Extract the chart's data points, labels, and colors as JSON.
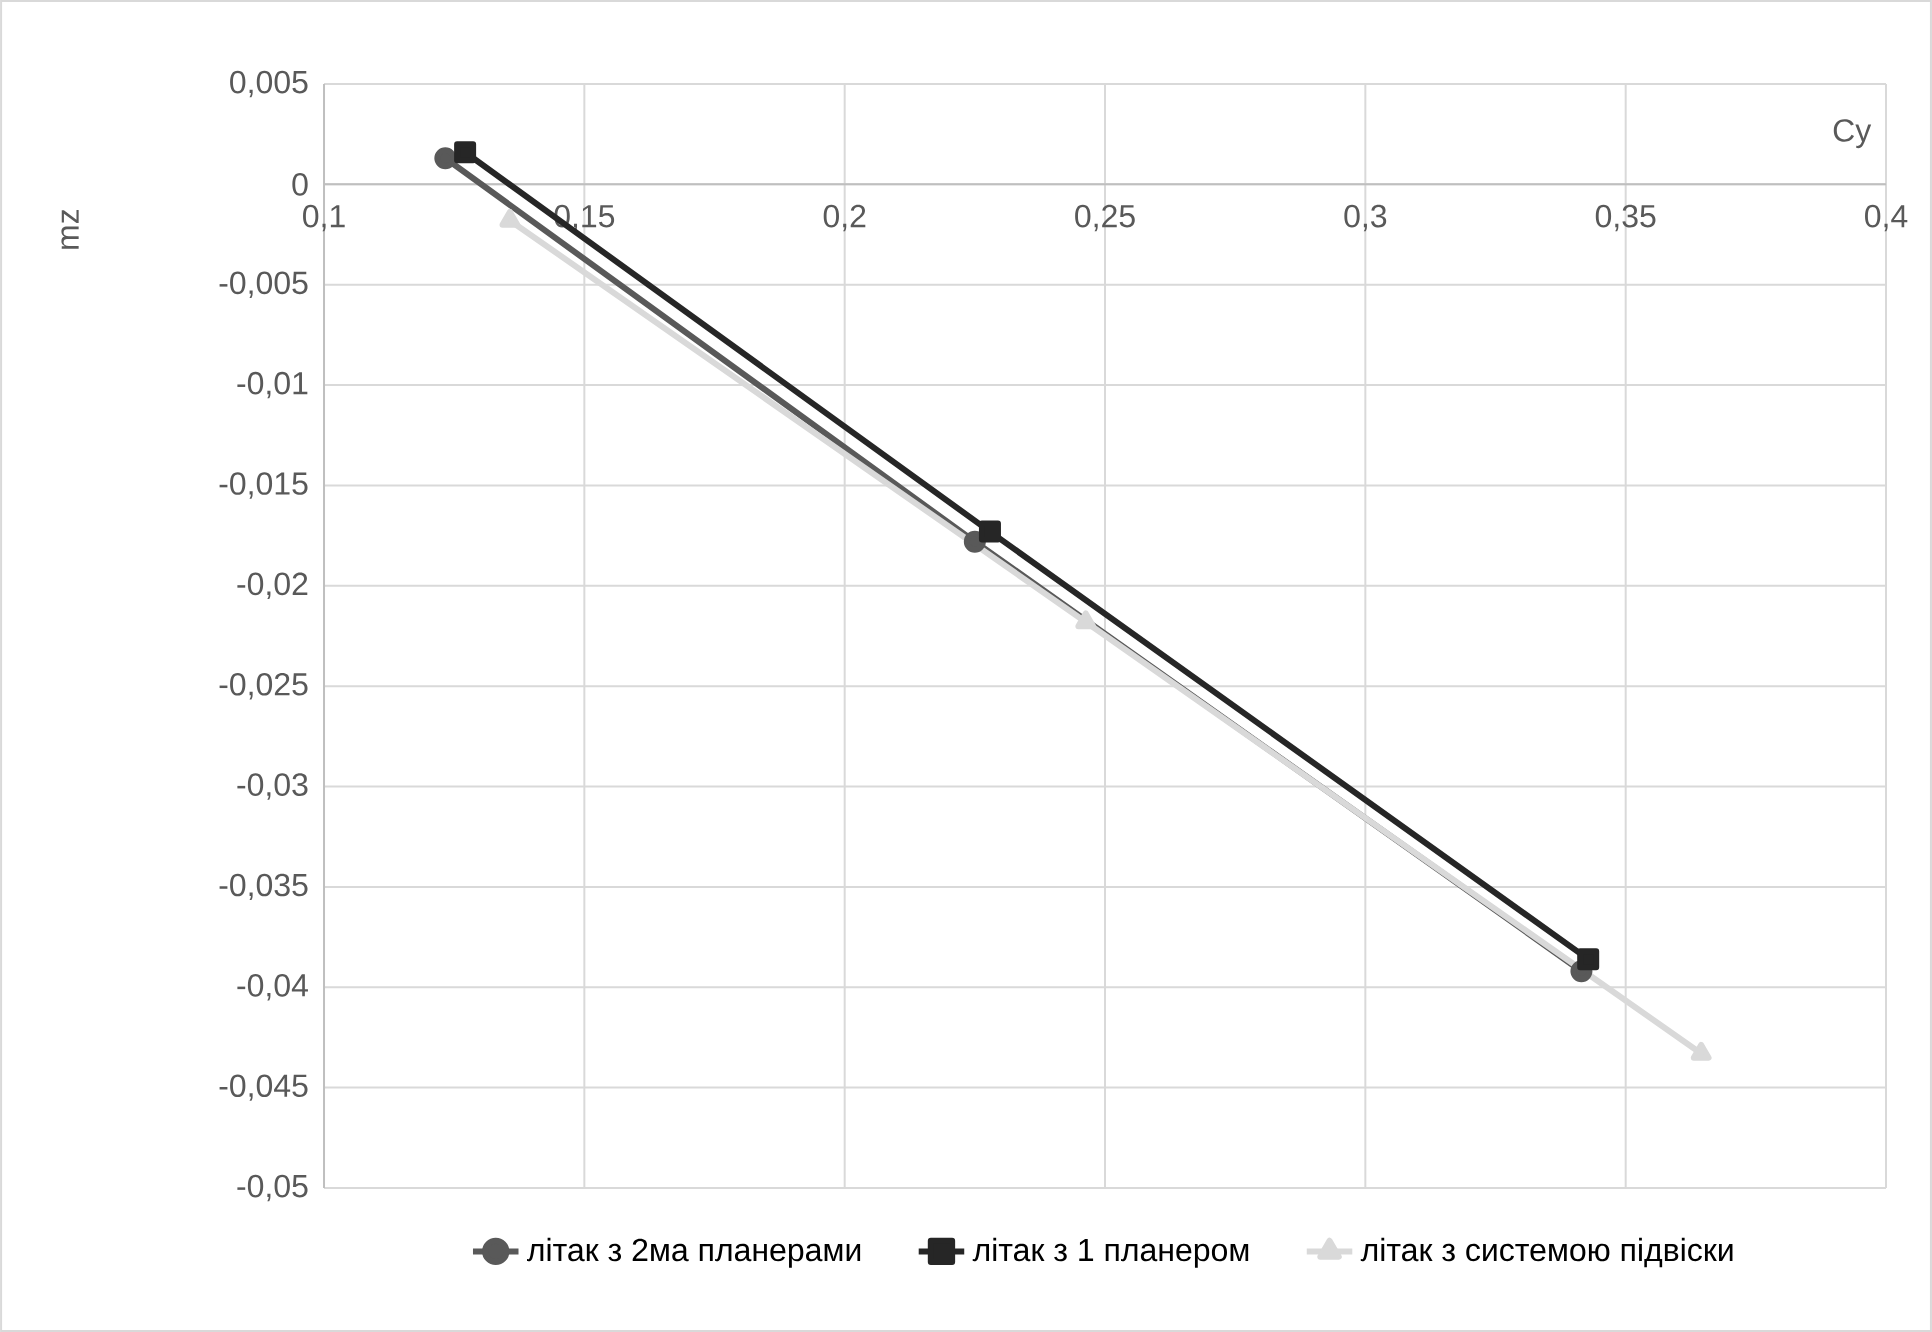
{
  "chart_data": {
    "type": "line",
    "xlabel": "Cy",
    "ylabel": "mz",
    "xlim": [
      0.1,
      0.4
    ],
    "ylim": [
      -0.05,
      0.005
    ],
    "xticks": [
      {
        "value": 0.1,
        "label": "0,1"
      },
      {
        "value": 0.15,
        "label": "0,15"
      },
      {
        "value": 0.2,
        "label": "0,2"
      },
      {
        "value": 0.25,
        "label": "0,25"
      },
      {
        "value": 0.3,
        "label": "0,3"
      },
      {
        "value": 0.35,
        "label": "0,35"
      },
      {
        "value": 0.4,
        "label": "0,4"
      }
    ],
    "yticks": [
      {
        "value": 0.005,
        "label": "0,005"
      },
      0,
      {
        "value": -0.005,
        "label": "-0,005"
      },
      {
        "value": -0.01,
        "label": "-0,01"
      },
      {
        "value": -0.015,
        "label": "-0,015"
      },
      {
        "value": -0.02,
        "label": "-0,02"
      },
      {
        "value": -0.025,
        "label": "-0,025"
      },
      {
        "value": -0.03,
        "label": "-0,03"
      },
      {
        "value": -0.035,
        "label": "-0,035"
      },
      {
        "value": -0.04,
        "label": "-0,04"
      },
      {
        "value": -0.045,
        "label": "-0,045"
      },
      {
        "value": -0.05,
        "label": "-0,05"
      }
    ],
    "grid": true,
    "legend": "bottom",
    "line_style": "solid",
    "series": [
      {
        "name": "літак з 2ма планерами",
        "color": "#595959",
        "marker": "circle",
        "x": [
          0.1233,
          0.225,
          0.3415
        ],
        "values": [
          0.0013,
          -0.0178,
          -0.0392
        ]
      },
      {
        "name": "літак з 1 планером",
        "color": "#262626",
        "marker": "square",
        "x": [
          0.1271,
          0.2279,
          0.3428
        ],
        "values": [
          0.0016,
          -0.0173,
          -0.0386
        ]
      },
      {
        "name": "літак з системою підвіски",
        "color": "#d9d9d9",
        "marker": "triangle",
        "x": [
          0.1357,
          0.2463,
          0.3645
        ],
        "values": [
          -0.0018,
          -0.0218,
          -0.0433
        ]
      }
    ]
  }
}
